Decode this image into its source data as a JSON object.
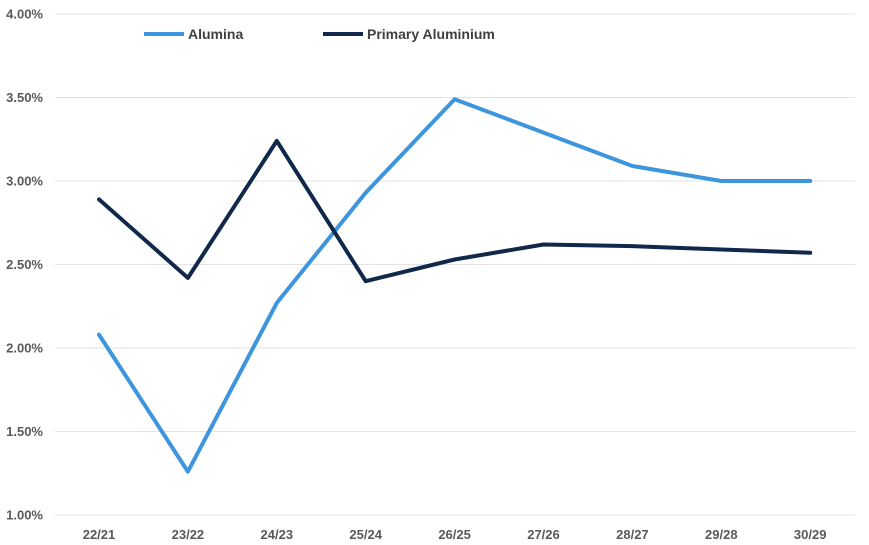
{
  "chart_data": {
    "type": "line",
    "categories": [
      "22/21",
      "23/22",
      "24/23",
      "25/24",
      "26/25",
      "27/26",
      "28/27",
      "29/28",
      "30/29"
    ],
    "series": [
      {
        "name": "Alumina",
        "color": "#3D95DD",
        "values": [
          2.08,
          1.26,
          2.27,
          2.93,
          3.49,
          3.29,
          3.09,
          3.0,
          3.0
        ]
      },
      {
        "name": "Primary Aluminium",
        "color": "#10294B",
        "values": [
          2.89,
          2.42,
          3.24,
          2.4,
          2.53,
          2.62,
          2.61,
          2.59,
          2.57
        ]
      }
    ],
    "yticks": [
      "1.00%",
      "1.50%",
      "2.00%",
      "2.50%",
      "3.00%",
      "3.50%",
      "4.00%"
    ],
    "ylim": [
      1.0,
      4.0
    ],
    "grid": true,
    "legend_position": "top-left",
    "gridline_color": "#E3E3E3"
  }
}
